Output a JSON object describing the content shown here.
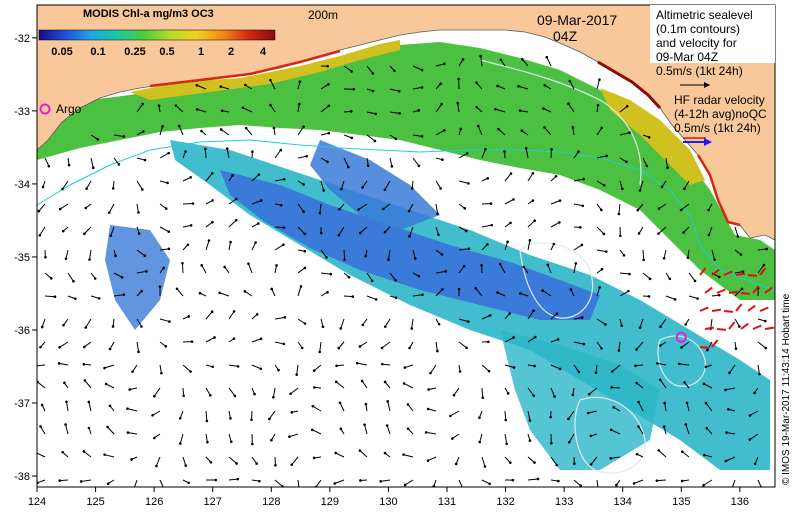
{
  "legend": {
    "title": "MODIS Chl-a mg/m3 OC3",
    "ticks": [
      "0.05",
      "0.1",
      "0.25",
      "0.5",
      "1",
      "2",
      "4"
    ],
    "gradient_colors": [
      "#1a0a8a",
      "#1f4fd6",
      "#1fa8e6",
      "#19c9a0",
      "#4fcc3c",
      "#b4dc2a",
      "#f0d020",
      "#f08c14",
      "#d22814",
      "#8c0a0a"
    ]
  },
  "labels": {
    "isobath": "200m",
    "date": "09-Mar-2017",
    "time": "04Z",
    "argo": "Argo",
    "altimetry_line1": "Altimetric sealevel",
    "altimetry_line2": "(0.1m contours)",
    "altimetry_line3": "and velocity for",
    "altimetry_line4": "09-Mar 04Z",
    "altimetry_scale": "0.5m/s (1kt 24h)",
    "hf_line1": "HF radar velocity",
    "hf_line2": "(4-12h avg)noQC",
    "hf_scale": "0.5m/s (1kt 24h)",
    "credit": "© IMOS 19-Mar-2017 11:43:14 Hobart time"
  },
  "axes": {
    "x_ticks": [
      "124",
      "125",
      "126",
      "127",
      "128",
      "129",
      "130",
      "131",
      "132",
      "133",
      "134",
      "135",
      "136"
    ],
    "y_ticks": [
      "-32",
      "-33",
      "-34",
      "-35",
      "-36",
      "-37",
      "-38"
    ]
  },
  "colors": {
    "land": "#f8c89a",
    "argo_marker": "#e020e0",
    "hf_arrow": "#1a1aff",
    "hf_red": "#e01010",
    "contour": "#dcebf0",
    "isobath": "#20d0d0",
    "chl_low": "#3a7ad8",
    "chl_mid": "#2cb6c8",
    "chl_high": "#4cc040",
    "chl_very_high": "#d0c020"
  },
  "argo_float": {
    "lon": 135.0,
    "lat": -36.1
  }
}
